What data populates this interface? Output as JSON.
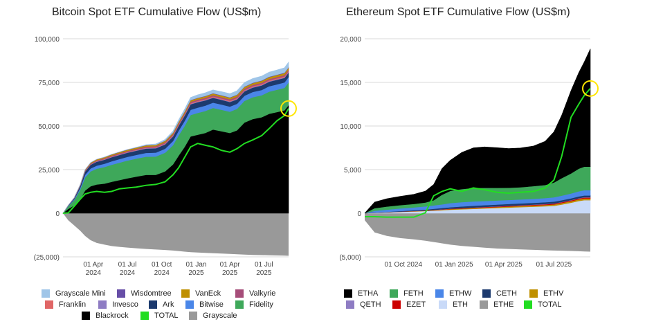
{
  "charts_meta": {
    "btc_title": "Bitcoin Spot ETF Cumulative Flow (US$m)",
    "eth_title": "Ethereum Spot ETF Cumulative Flow (US$m)"
  },
  "chart_data": [
    {
      "type": "area",
      "title": "Bitcoin Spot ETF Cumulative Flow (US$m)",
      "stacked": true,
      "grid": true,
      "legend_position": "bottom",
      "ylim": [
        -25000,
        100000
      ],
      "y_ticks": [
        "100,000",
        "75,000",
        "50,000",
        "25,000",
        "0",
        "(25,000)"
      ],
      "y_tick_values": [
        100000,
        75000,
        50000,
        25000,
        0,
        -25000
      ],
      "x_ticks": [
        "01 Apr 2024",
        "01 Jul 2024",
        "01 Oct 2024",
        "01 Jan 2025",
        "01 Apr 2025",
        "01 Jul 2025"
      ],
      "x_tick_dates": [
        "2024-04-01",
        "2024-07-01",
        "2024-10-01",
        "2025-01-01",
        "2025-04-01",
        "2025-07-01"
      ],
      "xlim": [
        "2024-01-11",
        "2025-09-05"
      ],
      "dates": [
        "2024-01-11",
        "2024-01-25",
        "2024-02-10",
        "2024-02-26",
        "2024-03-10",
        "2024-03-25",
        "2024-04-10",
        "2024-05-01",
        "2024-05-20",
        "2024-06-10",
        "2024-07-01",
        "2024-07-25",
        "2024-08-20",
        "2024-09-15",
        "2024-10-10",
        "2024-10-31",
        "2024-11-15",
        "2024-12-01",
        "2024-12-17",
        "2025-01-05",
        "2025-01-25",
        "2025-02-15",
        "2025-03-10",
        "2025-04-01",
        "2025-04-20",
        "2025-05-10",
        "2025-06-01",
        "2025-06-25",
        "2025-07-15",
        "2025-08-05",
        "2025-08-25",
        "2025-09-05"
      ],
      "series": [
        {
          "name": "Blackrock",
          "color": "#000000",
          "values": [
            0,
            2500,
            4500,
            8000,
            13000,
            15500,
            16500,
            17000,
            18000,
            19000,
            20000,
            21000,
            22000,
            22000,
            24000,
            28000,
            33000,
            38000,
            44000,
            45000,
            46000,
            48000,
            47000,
            46000,
            47500,
            52000,
            54000,
            55000,
            57000,
            58000,
            59000,
            62000
          ]
        },
        {
          "name": "Fidelity",
          "color": "#3ea85a",
          "values": [
            0,
            1500,
            3000,
            5500,
            7500,
            8500,
            9000,
            9500,
            9800,
            10000,
            10200,
            10300,
            10400,
            10500,
            10700,
            11000,
            11600,
            12000,
            12300,
            12500,
            12600,
            12400,
            12300,
            12200,
            12300,
            12400,
            12500,
            12600,
            12700,
            12800,
            12900,
            13000
          ]
        },
        {
          "name": "Bitwise",
          "color": "#4a86e8",
          "values": [
            0,
            200,
            500,
            1000,
            1500,
            1700,
            1800,
            1900,
            2000,
            2050,
            2100,
            2150,
            2200,
            2250,
            2300,
            2400,
            2700,
            2900,
            3000,
            3050,
            3050,
            3000,
            3000,
            2950,
            2950,
            2950,
            3000,
            3050,
            3100,
            3100,
            3100,
            3100
          ]
        },
        {
          "name": "Ark",
          "color": "#1c3a6e",
          "values": [
            0,
            200,
            600,
            1200,
            1900,
            2100,
            2200,
            2250,
            2300,
            2350,
            2400,
            2400,
            2450,
            2450,
            2500,
            2600,
            2800,
            3000,
            3100,
            3100,
            3000,
            2800,
            2700,
            2600,
            2500,
            2500,
            2500,
            2600,
            2600,
            2600,
            2600,
            2600
          ]
        },
        {
          "name": "Invesco",
          "color": "#8e7cc3",
          "values": [
            0,
            30,
            60,
            100,
            150,
            180,
            200,
            210,
            220,
            230,
            240,
            250,
            260,
            270,
            280,
            290,
            300,
            300,
            300,
            300,
            300,
            300,
            300,
            300,
            300,
            300,
            300,
            300,
            300,
            300,
            300,
            300
          ]
        },
        {
          "name": "Franklin",
          "color": "#e06666",
          "values": [
            0,
            20,
            50,
            80,
            120,
            150,
            180,
            200,
            220,
            240,
            260,
            280,
            300,
            320,
            340,
            360,
            380,
            400,
            420,
            440,
            450,
            460,
            470,
            480,
            490,
            500,
            510,
            520,
            530,
            540,
            550,
            560
          ]
        },
        {
          "name": "Valkyrie",
          "color": "#a64d79",
          "values": [
            0,
            50,
            100,
            200,
            350,
            400,
            450,
            480,
            500,
            520,
            540,
            560,
            580,
            600,
            620,
            650,
            700,
            720,
            740,
            760,
            760,
            760,
            760,
            760,
            760,
            760,
            760,
            760,
            760,
            760,
            760,
            760
          ]
        },
        {
          "name": "VanEck",
          "color": "#bf9000",
          "values": [
            0,
            50,
            100,
            200,
            350,
            450,
            520,
            560,
            600,
            630,
            650,
            670,
            690,
            710,
            730,
            760,
            800,
            820,
            840,
            860,
            880,
            900,
            920,
            940,
            960,
            980,
            1000,
            1020,
            1040,
            1060,
            1080,
            1100
          ]
        },
        {
          "name": "Wisdomtree",
          "color": "#674ea7",
          "values": [
            0,
            10,
            20,
            30,
            40,
            50,
            60,
            70,
            80,
            90,
            100,
            110,
            120,
            130,
            140,
            150,
            160,
            170,
            180,
            190,
            200,
            210,
            220,
            230,
            240,
            250,
            260,
            270,
            280,
            290,
            300,
            310
          ]
        },
        {
          "name": "Grayscale Mini",
          "color": "#9fc5e8",
          "values": [
            0,
            0,
            0,
            0,
            0,
            0,
            0,
            0,
            0,
            0,
            0,
            100,
            300,
            500,
            700,
            900,
            1100,
            1300,
            1500,
            1700,
            1800,
            1900,
            2000,
            2100,
            2200,
            2300,
            2400,
            2500,
            2600,
            2700,
            2800,
            2900
          ]
        }
      ],
      "negative_series": {
        "name": "Grayscale",
        "color": "#999999",
        "values": [
          0,
          -4000,
          -7000,
          -10000,
          -13000,
          -15500,
          -17000,
          -18000,
          -18800,
          -19300,
          -19700,
          -20100,
          -20500,
          -20800,
          -21100,
          -21400,
          -21700,
          -22000,
          -22300,
          -22500,
          -22700,
          -22900,
          -23100,
          -23300,
          -23500,
          -23700,
          -23900,
          -24000,
          -24100,
          -24200,
          -24300,
          -24400
        ]
      },
      "total_line": {
        "name": "TOTAL",
        "color": "#22dd22",
        "values": [
          0,
          200,
          4000,
          8000,
          11000,
          12000,
          12500,
          12000,
          12500,
          14000,
          14500,
          15000,
          16000,
          16500,
          18000,
          22000,
          26000,
          32000,
          38000,
          40000,
          39000,
          38000,
          36000,
          35000,
          37000,
          40000,
          42000,
          44500,
          48500,
          53000,
          56000,
          60000
        ]
      },
      "annotation": "yellow circle marker at latest TOTAL value"
    },
    {
      "type": "area",
      "title": "Ethereum Spot ETF Cumulative Flow (US$m)",
      "stacked": true,
      "grid": true,
      "legend_position": "bottom",
      "ylim": [
        -5000,
        20000
      ],
      "y_ticks": [
        "20,000",
        "15,000",
        "10,000",
        "5,000",
        "0",
        "(5,000)"
      ],
      "y_tick_values": [
        20000,
        15000,
        10000,
        5000,
        0,
        -5000
      ],
      "x_ticks": [
        "01 Oct 2024",
        "01 Jan 2025",
        "01 Apr 2025",
        "01 Jul 2025"
      ],
      "x_tick_dates": [
        "2024-10-01",
        "2025-01-01",
        "2025-04-01",
        "2025-07-01"
      ],
      "xlim": [
        "2024-07-23",
        "2025-09-05"
      ],
      "dates": [
        "2024-07-23",
        "2024-08-10",
        "2024-09-01",
        "2024-09-25",
        "2024-10-20",
        "2024-11-10",
        "2024-11-25",
        "2024-12-10",
        "2024-12-25",
        "2025-01-15",
        "2025-02-05",
        "2025-02-25",
        "2025-03-20",
        "2025-04-10",
        "2025-05-01",
        "2025-05-25",
        "2025-06-15",
        "2025-07-01",
        "2025-07-15",
        "2025-08-01",
        "2025-08-15",
        "2025-08-25",
        "2025-09-05"
      ],
      "series": [
        {
          "name": "ETH",
          "color": "#c9daf8",
          "values": [
            0,
            50,
            100,
            150,
            200,
            250,
            300,
            350,
            400,
            450,
            500,
            550,
            600,
            650,
            700,
            750,
            800,
            850,
            1000,
            1200,
            1400,
            1500,
            1500
          ]
        },
        {
          "name": "ETHV",
          "color": "#bf9000",
          "values": [
            0,
            5,
            10,
            20,
            30,
            40,
            50,
            60,
            70,
            80,
            90,
            100,
            110,
            120,
            130,
            140,
            150,
            160,
            170,
            180,
            190,
            200,
            200
          ]
        },
        {
          "name": "EZET",
          "color": "#cc0000",
          "values": [
            0,
            5,
            10,
            15,
            20,
            25,
            30,
            35,
            40,
            45,
            50,
            55,
            60,
            65,
            70,
            75,
            80,
            85,
            90,
            95,
            100,
            100,
            100
          ]
        },
        {
          "name": "QETH",
          "color": "#8e7cc3",
          "values": [
            0,
            2,
            4,
            6,
            8,
            10,
            12,
            14,
            16,
            18,
            20,
            22,
            24,
            26,
            28,
            30,
            32,
            34,
            36,
            38,
            40,
            40,
            40
          ]
        },
        {
          "name": "CETH",
          "color": "#1c3a6e",
          "values": [
            0,
            20,
            40,
            60,
            80,
            100,
            120,
            140,
            160,
            180,
            200,
            200,
            200,
            200,
            200,
            200,
            200,
            200,
            200,
            200,
            200,
            200,
            200
          ]
        },
        {
          "name": "ETHW",
          "color": "#4a86e8",
          "values": [
            0,
            200,
            250,
            300,
            330,
            360,
            380,
            420,
            480,
            500,
            490,
            480,
            470,
            460,
            450,
            460,
            480,
            500,
            520,
            550,
            580,
            600,
            600
          ]
        },
        {
          "name": "FETH",
          "color": "#3ea85a",
          "values": [
            0,
            300,
            350,
            380,
            400,
            450,
            600,
            1100,
            1400,
            1500,
            1550,
            1500,
            1450,
            1400,
            1400,
            1450,
            1500,
            1700,
            2000,
            2300,
            2600,
            2700,
            2700
          ]
        },
        {
          "name": "ETHA",
          "color": "#000000",
          "values": [
            0,
            700,
            900,
            1000,
            1100,
            1300,
            1800,
            3000,
            3500,
            4200,
            4600,
            4700,
            4600,
            4500,
            4500,
            4600,
            5000,
            5800,
            7200,
            9500,
            11000,
            12000,
            13500
          ]
        }
      ],
      "negative_series": {
        "name": "ETHE",
        "color": "#999999",
        "values": [
          -800,
          -2200,
          -2600,
          -2850,
          -3000,
          -3150,
          -3300,
          -3450,
          -3600,
          -3750,
          -3850,
          -3950,
          -4050,
          -4100,
          -4150,
          -4200,
          -4250,
          -4280,
          -4300,
          -4330,
          -4360,
          -4380,
          -4400
        ]
      },
      "total_line": {
        "name": "TOTAL",
        "color": "#22dd22",
        "values": [
          -400,
          -400,
          -450,
          -450,
          -450,
          50,
          2000,
          2500,
          2800,
          2500,
          2900,
          2700,
          2400,
          2300,
          2400,
          2500,
          2900,
          3800,
          6500,
          11000,
          12500,
          13500,
          14300
        ]
      },
      "annotation": "yellow circle marker at latest TOTAL value"
    }
  ],
  "legend_btc": [
    {
      "label": "Grayscale Mini",
      "color": "#9fc5e8"
    },
    {
      "label": "Wisdomtree",
      "color": "#674ea7"
    },
    {
      "label": "VanEck",
      "color": "#bf9000"
    },
    {
      "label": "Valkyrie",
      "color": "#a64d79"
    },
    {
      "label": "Franklin",
      "color": "#e06666"
    },
    {
      "label": "Invesco",
      "color": "#8e7cc3"
    },
    {
      "label": "Ark",
      "color": "#1c3a6e"
    },
    {
      "label": "Bitwise",
      "color": "#4a86e8"
    },
    {
      "label": "Fidelity",
      "color": "#3ea85a"
    },
    {
      "label": "Blackrock",
      "color": "#000000"
    },
    {
      "label": "TOTAL",
      "color": "#22dd22"
    },
    {
      "label": "Grayscale",
      "color": "#999999"
    }
  ],
  "legend_eth": [
    {
      "label": "ETHA",
      "color": "#000000"
    },
    {
      "label": "FETH",
      "color": "#3ea85a"
    },
    {
      "label": "ETHW",
      "color": "#4a86e8"
    },
    {
      "label": "CETH",
      "color": "#1c3a6e"
    },
    {
      "label": "ETHV",
      "color": "#bf9000"
    },
    {
      "label": "QETH",
      "color": "#8e7cc3"
    },
    {
      "label": "EZET",
      "color": "#cc0000"
    },
    {
      "label": "ETH",
      "color": "#c9daf8"
    },
    {
      "label": "ETHE",
      "color": "#999999"
    },
    {
      "label": "TOTAL",
      "color": "#22dd22"
    }
  ],
  "highlight_color": "#ffe600"
}
